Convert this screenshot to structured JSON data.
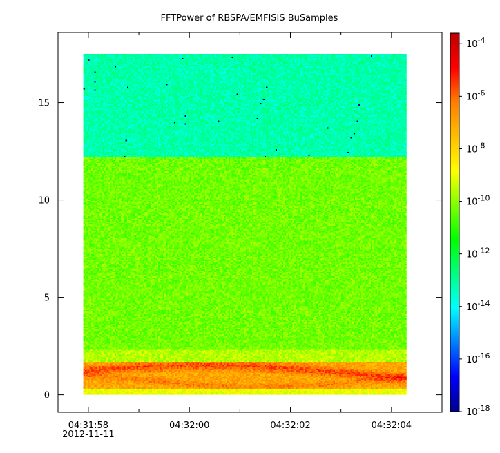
{
  "chart_data": {
    "type": "heatmap",
    "title": "FFTPower of RBSPA/EMFISIS  BuSamples",
    "xlabel": "",
    "ylabel": "",
    "x_axis": {
      "kind": "time",
      "range": [
        "04:31:57.4",
        "04:32:05.0"
      ],
      "data_range": [
        "04:31:57.9",
        "04:32:04.3"
      ],
      "ticks": [
        {
          "value": "04:31:58",
          "label": "04:31:58",
          "sublabel": "2012-11-11"
        },
        {
          "value": "04:32:00",
          "label": "04:32:00",
          "sublabel": ""
        },
        {
          "value": "04:32:02",
          "label": "04:32:02",
          "sublabel": ""
        },
        {
          "value": "04:32:04",
          "label": "04:32:04",
          "sublabel": ""
        }
      ],
      "minor_ticks": [
        "04:31:59",
        "04:32:01",
        "04:32:03",
        "04:32:05"
      ]
    },
    "y_axis": {
      "range": [
        -0.9,
        18.6
      ],
      "data_range": [
        0,
        17.5
      ],
      "ticks": [
        0,
        5,
        10,
        15
      ]
    },
    "colorbar": {
      "scale": "log",
      "range_exponent": [
        -18,
        -3.6
      ],
      "tick_exponents": [
        -18,
        -16,
        -14,
        -12,
        -10,
        -8,
        -6,
        -4
      ],
      "tick_base": "10",
      "colormap": [
        "#00008f",
        "#0000ff",
        "#0080ff",
        "#00ffff",
        "#00ff80",
        "#00ff00",
        "#80ff00",
        "#ffff00",
        "#ffbf00",
        "#ff8000",
        "#ff0000",
        "#c00000"
      ]
    },
    "bands": [
      {
        "y_from": 12.2,
        "y_to": 17.5,
        "typical_exponent": -13.2
      },
      {
        "y_from": 2.3,
        "y_to": 12.2,
        "typical_exponent": -10.3
      },
      {
        "y_from": 1.7,
        "y_to": 2.3,
        "typical_exponent": -9.6
      },
      {
        "y_from": 0.3,
        "y_to": 1.7,
        "typical_exponent": -7.0
      },
      {
        "y_from": 0,
        "y_to": 0.3,
        "typical_exponent": -9.0
      }
    ]
  }
}
